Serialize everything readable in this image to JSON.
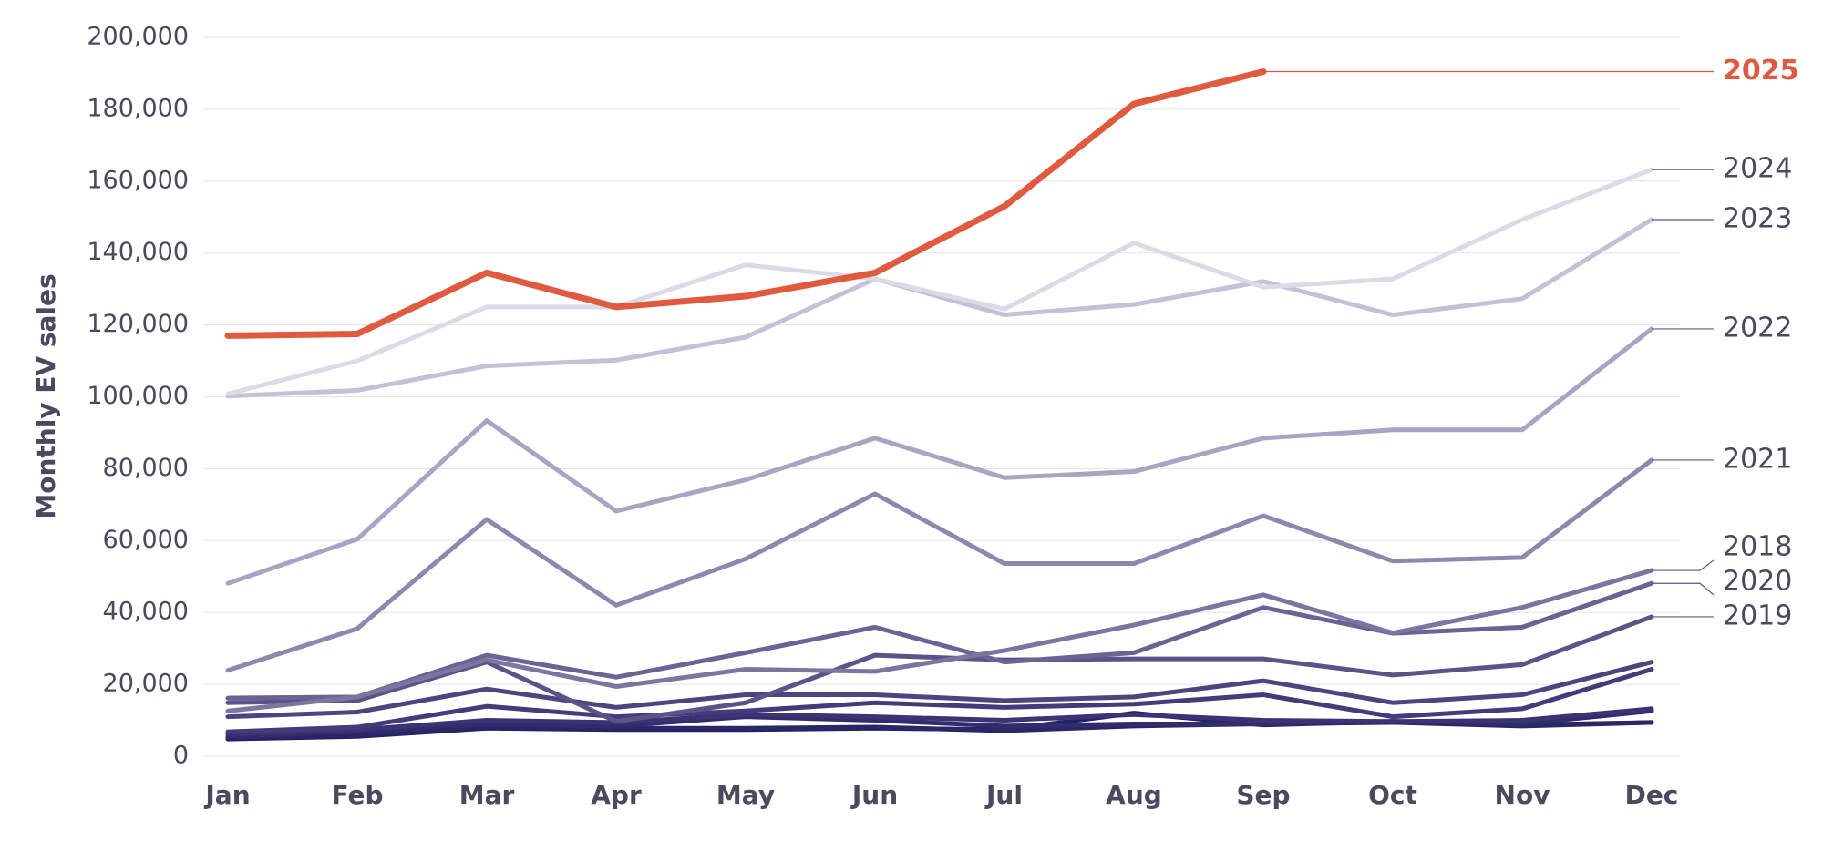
{
  "chart_data": {
    "type": "line",
    "y_label": "Monthly EV sales",
    "categories": [
      "Jan",
      "Feb",
      "Mar",
      "Apr",
      "May",
      "Jun",
      "Jul",
      "Aug",
      "Sep",
      "Oct",
      "Nov",
      "Dec"
    ],
    "ylim": [
      0,
      200000
    ],
    "yticks": [
      0,
      {
        "value": 20000,
        "label": "20,000"
      },
      {
        "value": 40000,
        "label": "40,000"
      },
      {
        "value": 60000,
        "label": "60,000"
      },
      {
        "value": 80000,
        "label": "80,000"
      },
      {
        "value": 100000,
        "label": "100,000"
      },
      {
        "value": 120000,
        "label": "120,000"
      },
      {
        "value": 140000,
        "label": "140,000"
      },
      {
        "value": 160000,
        "label": "160,000"
      },
      {
        "value": 180000,
        "label": "180,000"
      },
      {
        "value": 200000,
        "label": "200,000"
      }
    ],
    "grid": true,
    "series": [
      {
        "name": "2025",
        "color": "#e05a40",
        "values": [
          117000,
          117500,
          134500,
          125000,
          128000,
          134500,
          153000,
          181500,
          190500,
          null,
          null,
          null
        ]
      },
      {
        "name": "2024",
        "color": "#dcdae6",
        "values": [
          100800,
          110000,
          125000,
          125000,
          136700,
          132800,
          124400,
          142800,
          130500,
          132800,
          149300,
          163200
        ]
      },
      {
        "name": "2023",
        "color": "#c4c0d6",
        "values": [
          100200,
          101800,
          108600,
          110200,
          116600,
          132800,
          122800,
          125700,
          132100,
          122800,
          127300,
          149300
        ]
      },
      {
        "name": "2022",
        "color": "#aaa4c2",
        "values": [
          48100,
          60400,
          93400,
          68200,
          76900,
          88500,
          77500,
          79200,
          88500,
          90800,
          90800,
          118900
        ]
      },
      {
        "name": "2021",
        "color": "#8f88ae",
        "values": [
          23900,
          35500,
          65900,
          42000,
          54900,
          73000,
          53600,
          53600,
          66900,
          54300,
          55300,
          82400
        ]
      },
      {
        "name": "2018",
        "color": "#7d74a0",
        "values": [
          12600,
          16500,
          26800,
          19400,
          24200,
          23600,
          29400,
          36500,
          44900,
          34300,
          41400,
          51700
        ]
      },
      {
        "name": "2020",
        "color": "#6c6394",
        "values": [
          16200,
          16500,
          28100,
          22000,
          28800,
          35900,
          26200,
          28800,
          41400,
          34200,
          35900,
          48100
        ]
      },
      {
        "name": "2019",
        "color": "#5c5388",
        "values": [
          14900,
          15500,
          26200,
          9700,
          14900,
          28100,
          26800,
          27100,
          27100,
          22600,
          25500,
          38800
        ]
      },
      {
        "color": "#4d4580",
        "values": [
          11000,
          12300,
          18700,
          13600,
          17100,
          17100,
          15500,
          16500,
          21000,
          14900,
          17100,
          26200
        ]
      },
      {
        "color": "#433b7a",
        "values": [
          6800,
          8100,
          13900,
          11000,
          12600,
          14900,
          13600,
          14500,
          17100,
          11000,
          13200,
          24200
        ]
      },
      {
        "color": "#3a3474",
        "values": [
          6100,
          7400,
          10000,
          9400,
          11600,
          11000,
          10000,
          11600,
          10000,
          9700,
          10000,
          13200
        ]
      },
      {
        "color": "#322c6e",
        "values": [
          5500,
          6800,
          9000,
          8400,
          11000,
          10000,
          8400,
          9000,
          9000,
          9700,
          9000,
          12600
        ]
      },
      {
        "color": "#2a2668",
        "values": [
          5200,
          6100,
          8100,
          7800,
          7800,
          8100,
          7100,
          8400,
          9000,
          9400,
          8400,
          9400
        ]
      },
      {
        "color": "#232262",
        "values": [
          4800,
          5500,
          7800,
          7400,
          7400,
          7800,
          7400,
          12000,
          8700,
          9700,
          8700,
          9400
        ]
      }
    ]
  }
}
